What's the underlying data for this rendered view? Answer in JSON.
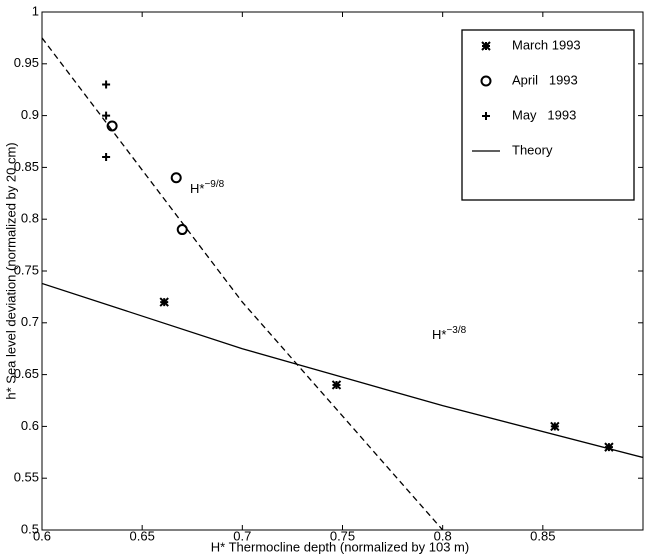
{
  "chart_data": {
    "type": "scatter",
    "xlabel": "H* Thermocline depth (normalized by 103 m)",
    "ylabel": "h* Sea level deviation (normalized by 20 cm)",
    "xlim": [
      0.6,
      0.9
    ],
    "ylim": [
      0.5,
      1
    ],
    "xticks": [
      0.6,
      0.65,
      0.7,
      0.75,
      0.8,
      0.85
    ],
    "yticks": [
      0.5,
      0.55,
      0.6,
      0.65,
      0.7,
      0.75,
      0.8,
      0.85,
      0.9,
      0.95,
      1
    ],
    "legend": "upper right",
    "series": [
      {
        "name": "March 1993",
        "marker": "asterisk",
        "color": "#000000",
        "x": [
          0.661,
          0.747,
          0.856,
          0.883
        ],
        "values": [
          0.72,
          0.64,
          0.6,
          0.58
        ]
      },
      {
        "name": "April   1993",
        "marker": "circle",
        "color": "#000000",
        "x": [
          0.635,
          0.667,
          0.67
        ],
        "values": [
          0.89,
          0.84,
          0.79
        ]
      },
      {
        "name": "May   1993",
        "marker": "plus",
        "color": "#000000",
        "x": [
          0.632,
          0.632,
          0.632
        ],
        "values": [
          0.93,
          0.9,
          0.86
        ]
      },
      {
        "name": "Theory",
        "marker": "line",
        "color": "#000000",
        "x": [
          0.6,
          0.7,
          0.8,
          0.9
        ],
        "values": [
          0.738,
          0.675,
          0.62,
          0.57
        ]
      }
    ],
    "lines": [
      {
        "style": "dashed",
        "color": "#000000",
        "x": [
          0.6,
          0.7,
          0.8
        ],
        "values": [
          0.975,
          0.72,
          0.5
        ]
      }
    ],
    "annotations": [
      {
        "text": "H*",
        "sup": "−9/8"
      },
      {
        "text": "H*",
        "sup": "−3/8"
      }
    ]
  }
}
